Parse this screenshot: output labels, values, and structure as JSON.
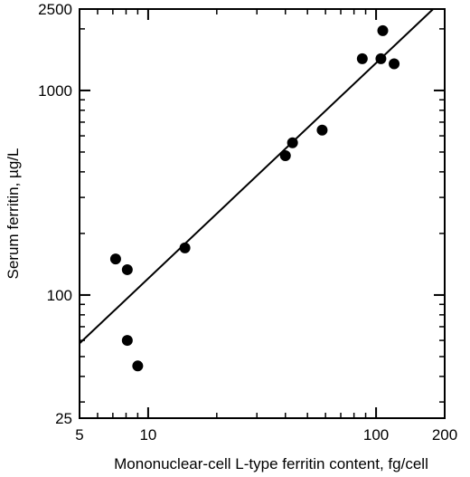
{
  "chart_data": {
    "type": "scatter",
    "title": "",
    "xlabel": "Mononuclear-cell L-type ferritin content, fg/cell",
    "ylabel": "Serum ferritin, µg/L",
    "xscale": "log",
    "yscale": "log",
    "xlim": [
      5,
      200
    ],
    "ylim": [
      25,
      2500
    ],
    "xticks": [
      {
        "value": 5,
        "label": "5"
      },
      {
        "value": 10,
        "label": "10"
      },
      {
        "value": 100,
        "label": "100"
      },
      {
        "value": 200,
        "label": "200"
      }
    ],
    "yticks": [
      {
        "value": 25,
        "label": "25"
      },
      {
        "value": 100,
        "label": "100"
      },
      {
        "value": 1000,
        "label": "1000"
      },
      {
        "value": 2500,
        "label": "2500"
      }
    ],
    "minor_xticks": [
      6,
      7,
      8,
      9,
      20,
      30,
      40,
      50,
      60,
      70,
      80,
      90
    ],
    "minor_yticks": [
      30,
      40,
      50,
      60,
      70,
      80,
      90,
      200,
      300,
      400,
      500,
      600,
      700,
      800,
      900,
      2000
    ],
    "grid": false,
    "legend": "none",
    "points": [
      {
        "x": 7.2,
        "y": 150
      },
      {
        "x": 8.1,
        "y": 133
      },
      {
        "x": 8.1,
        "y": 60
      },
      {
        "x": 9.0,
        "y": 45
      },
      {
        "x": 14.5,
        "y": 170
      },
      {
        "x": 40,
        "y": 480
      },
      {
        "x": 43,
        "y": 555
      },
      {
        "x": 58,
        "y": 640
      },
      {
        "x": 87,
        "y": 1430
      },
      {
        "x": 105,
        "y": 1430
      },
      {
        "x": 107,
        "y": 1960
      },
      {
        "x": 120,
        "y": 1350
      }
    ],
    "fit_line": {
      "x": [
        5,
        178
      ],
      "y": [
        58,
        2500
      ]
    },
    "colors": {
      "marker": "#000000",
      "line": "#000000",
      "frame": "#000000"
    }
  }
}
